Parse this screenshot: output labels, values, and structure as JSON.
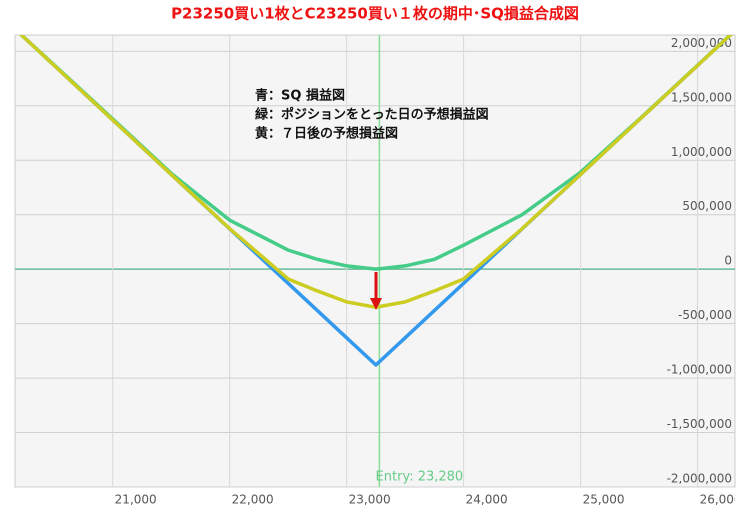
{
  "chart_data": {
    "type": "line",
    "title": "P23250買い1枚とC23250買い１枚の期中･SQ損益合成図",
    "legend_lines": [
      "青：SQ 損益図",
      "緑：ポジションをとった日の予想損益図",
      "黄：７日後の予想損益図"
    ],
    "annotation": {
      "x": 23280,
      "label": "Entry: 23,280",
      "color": "#88dd99"
    },
    "x": [
      20165,
      20500,
      21000,
      21500,
      22000,
      22500,
      22750,
      23000,
      23250,
      23500,
      23750,
      24000,
      24500,
      25000,
      25500,
      26000,
      26320
    ],
    "series": [
      {
        "name": "SQ",
        "color": "#3399ee",
        "values": [
          2205000,
          1870000,
          1370000,
          870000,
          370000,
          -130000,
          -380000,
          -630000,
          -880000,
          -630000,
          -380000,
          -130000,
          370000,
          870000,
          1370000,
          1870000,
          2190000
        ]
      },
      {
        "name": "entry",
        "color": "#44cc88",
        "values": [
          2205000,
          1875000,
          1380000,
          880000,
          450000,
          175000,
          90000,
          30000,
          0,
          30000,
          90000,
          220000,
          500000,
          890000,
          1375000,
          1872000,
          2192000
        ]
      },
      {
        "name": "7days",
        "color": "#cccc22",
        "values": [
          2205000,
          1870000,
          1370000,
          870000,
          372000,
          -90000,
          -200000,
          -300000,
          -350000,
          -300000,
          -200000,
          -90000,
          372000,
          870000,
          1370000,
          1870000,
          2190000
        ]
      }
    ],
    "xlim": [
      20165,
      26320
    ],
    "xticks": [
      {
        "value": 21000,
        "label": "21,000"
      },
      {
        "value": 22000,
        "label": "22,000"
      },
      {
        "value": 23000,
        "label": "23,000"
      },
      {
        "value": 24000,
        "label": "24,000"
      },
      {
        "value": 25000,
        "label": "25,000"
      },
      {
        "value": 26000,
        "label": "26,000"
      }
    ],
    "ylim": [
      -2000000,
      2150000
    ],
    "yticks": [
      {
        "value": 2000000,
        "label": "2,000,000"
      },
      {
        "value": 1500000,
        "label": "1,500,000"
      },
      {
        "value": 1000000,
        "label": "1,000,000"
      },
      {
        "value": 500000,
        "label": "500,000"
      },
      0,
      {
        "value": -500000,
        "label": "-500,000"
      },
      {
        "value": -1000000,
        "label": "-1,000,000"
      },
      {
        "value": -1500000,
        "label": "-1,500,000"
      },
      {
        "value": -2000000,
        "label": "-2,000,000"
      }
    ],
    "grid": true
  }
}
